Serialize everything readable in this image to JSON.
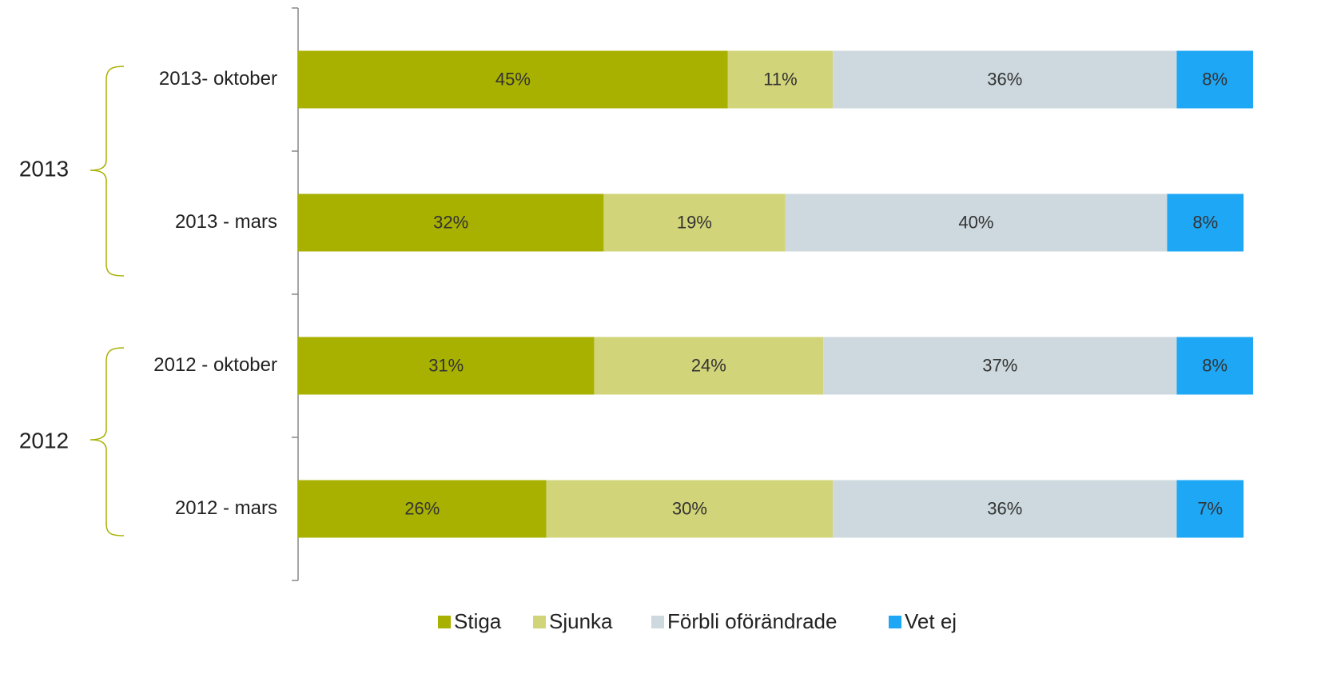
{
  "chart_data": {
    "type": "stacked_bar_horizontal",
    "categories": [
      "2013- oktober",
      "2013 - mars",
      "2012 - oktober",
      "2012 - mars"
    ],
    "groups": [
      "2013",
      "2012"
    ],
    "xlim": [
      0,
      100
    ],
    "legend": "bottom",
    "series": [
      {
        "name": "Stiga",
        "color": "#a8b000",
        "values": [
          45,
          32,
          31,
          26
        ],
        "value_labels": [
          "45%",
          "32%",
          "31%",
          "26%"
        ]
      },
      {
        "name": "Sjunka",
        "color": "#d2d479",
        "values": [
          11,
          19,
          24,
          30
        ],
        "value_labels": [
          "11%",
          "19%",
          "24%",
          "30%"
        ]
      },
      {
        "name": "Förbli oförändrade",
        "color": "#cdd9de",
        "values": [
          36,
          40,
          37,
          36
        ],
        "value_labels": [
          "36%",
          "40%",
          "37%",
          "36%"
        ]
      },
      {
        "name": "Vet ej",
        "color": "#1ea7f5",
        "values": [
          8,
          8,
          8,
          7
        ],
        "value_labels": [
          "8%",
          "8%",
          "8%",
          "7%"
        ]
      }
    ]
  }
}
